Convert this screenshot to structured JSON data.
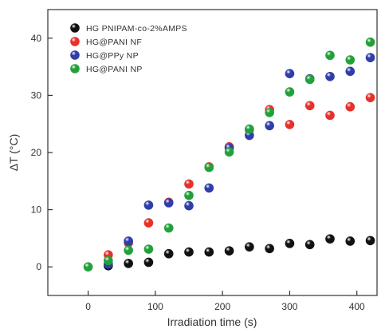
{
  "chart_data": {
    "type": "scatter",
    "xlabel": "Irradiation time (s)",
    "ylabel": "ΔT (°C)",
    "xlim": [
      -60,
      430
    ],
    "ylim": [
      -5,
      45
    ],
    "xticks": [
      0,
      100,
      200,
      300,
      400
    ],
    "yticks": [
      0,
      10,
      20,
      30,
      40
    ],
    "legend_position": "top-left",
    "grid": false,
    "series": [
      {
        "name": "HG PNIPAM-co-2%AMPS",
        "color": "#111111",
        "x": [
          30,
          60,
          90,
          120,
          150,
          180,
          210,
          240,
          270,
          300,
          330,
          360,
          390,
          420
        ],
        "y": [
          0.2,
          0.6,
          0.8,
          2.3,
          2.6,
          2.6,
          2.8,
          3.5,
          3.2,
          4.1,
          3.9,
          4.9,
          4.5,
          4.6
        ]
      },
      {
        "name": "HG@PANI NF",
        "color": "#e8302a",
        "x": [
          30,
          60,
          90,
          120,
          150,
          180,
          210,
          240,
          270,
          300,
          330,
          360,
          390,
          420
        ],
        "y": [
          2.1,
          4.2,
          7.7,
          11.3,
          14.5,
          17.5,
          21.0,
          24.0,
          27.5,
          24.9,
          28.2,
          26.5,
          28.0,
          29.6
        ]
      },
      {
        "name": "HG@PPy NP",
        "color": "#2f3ea8",
        "x": [
          30,
          60,
          90,
          120,
          150,
          180,
          210,
          240,
          270,
          300,
          330,
          360,
          390,
          420
        ],
        "y": [
          0.5,
          4.5,
          10.8,
          11.2,
          10.7,
          13.8,
          20.8,
          23.0,
          24.7,
          33.8,
          32.9,
          33.3,
          34.2,
          36.6
        ]
      },
      {
        "name": "HG@PANI NP",
        "color": "#22a13a",
        "x": [
          0,
          30,
          60,
          90,
          120,
          150,
          180,
          210,
          240,
          270,
          300,
          330,
          360,
          390,
          420
        ],
        "y": [
          0.0,
          1.1,
          2.9,
          3.1,
          6.8,
          12.5,
          17.4,
          20.1,
          24.1,
          27.0,
          30.6,
          32.8,
          37.0,
          36.2,
          39.3
        ]
      }
    ]
  }
}
